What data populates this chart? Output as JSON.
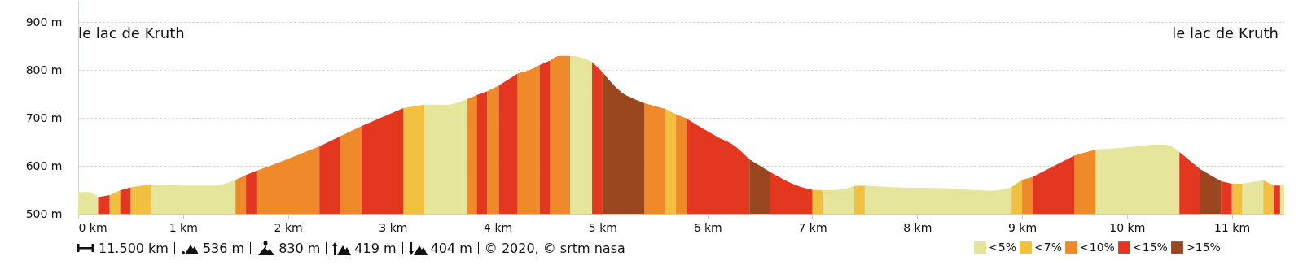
{
  "chart_data": {
    "type": "area",
    "xlim": [
      0,
      11.5
    ],
    "ylim": [
      500,
      945
    ],
    "xticks": [
      {
        "value": 0,
        "label": "0 km"
      },
      {
        "value": 1,
        "label": "1 km"
      },
      {
        "value": 2,
        "label": "2 km"
      },
      {
        "value": 3,
        "label": "3 km"
      },
      {
        "value": 4,
        "label": "4 km"
      },
      {
        "value": 5,
        "label": "5 km"
      },
      {
        "value": 6,
        "label": "6 km"
      },
      {
        "value": 7,
        "label": "7 km"
      },
      {
        "value": 8,
        "label": "8 km"
      },
      {
        "value": 9,
        "label": "9 km"
      },
      {
        "value": 10,
        "label": "10 km"
      },
      {
        "value": 11,
        "label": "11 km"
      }
    ],
    "yticks": [
      {
        "value": 500,
        "label": "500 m"
      },
      {
        "value": 600,
        "label": "600 m"
      },
      {
        "value": 700,
        "label": "700 m"
      },
      {
        "value": 800,
        "label": "800 m"
      },
      {
        "value": 900,
        "label": "900 m"
      }
    ],
    "grid": "y",
    "legend": "bottom right",
    "annotations": [
      "le lac de Kruth",
      "le lac de Kruth",
      "11.500 km",
      "536 m",
      "830 m",
      "419 m",
      "404 m",
      "© 2020, © srtm nasa"
    ],
    "series": [
      {
        "name": "<5%",
        "color": "#e5e59b",
        "x": [
          0,
          0.09,
          0.19,
          0.45,
          0.7,
          1.0,
          1.29,
          1.5,
          2.4,
          3.3,
          3.51,
          3.71,
          4.2,
          4.69,
          4.79,
          4.9,
          6.0,
          7.1,
          7.25,
          7.4,
          7.45,
          7.5,
          7.79,
          8.31,
          8.7,
          8.9,
          9.3,
          9.7,
          10.0,
          10.3,
          10.38,
          10.5,
          10.8,
          11.1,
          11.3,
          11.38,
          11.46,
          11.5
        ],
        "values": [
          545,
          546,
          535,
          null,
          562,
          559,
          559,
          571,
          null,
          728,
          728,
          740,
          null,
          830,
          827,
          817,
          null,
          549,
          550,
          558,
          null,
          559,
          555,
          553,
          548,
          556,
          null,
          634,
          639,
          645,
          644,
          629,
          null,
          563,
          570,
          null,
          559,
          559
        ]
      },
      {
        "name": "<7%",
        "color": "#f2c040",
        "x": [
          0.3,
          0.4,
          0.45,
          0.5,
          0.7,
          1.9,
          3.1,
          3.3,
          4.4,
          5.6,
          5.7,
          6.3,
          7.0,
          7.1,
          7.25,
          7.4,
          7.5,
          8.2,
          8.9,
          9.0,
          10.0,
          11.0,
          11.1,
          11.2,
          11.3,
          11.4
        ],
        "values": [
          539,
          549,
          null,
          555,
          562,
          null,
          721,
          728,
          null,
          719,
          708,
          null,
          550,
          549,
          null,
          558,
          559,
          null,
          556,
          571,
          null,
          563,
          563,
          null,
          570,
          559
        ]
      },
      {
        "name": "<10%",
        "color": "#ef8a2a",
        "x": [
          1.5,
          1.6,
          1.65,
          1.7,
          1.99,
          2.3,
          2.4,
          2.5,
          2.7,
          3.2,
          3.71,
          3.8,
          3.85,
          3.9,
          4.01,
          4.1,
          4.19,
          4.3,
          4.4,
          4.45,
          4.5,
          4.59,
          4.69,
          5.0,
          5.4,
          5.6,
          5.65,
          5.7,
          5.8,
          7.4,
          9.0,
          9.1,
          9.3,
          9.5,
          9.7
        ],
        "values": [
          571,
          581,
          null,
          590,
          614,
          641,
          null,
          662,
          683,
          null,
          740,
          748,
          null,
          756,
          768,
          null,
          793,
          800,
          811,
          null,
          820,
          830,
          830,
          null,
          731,
          719,
          null,
          708,
          699,
          null,
          571,
          577,
          null,
          622,
          634
        ]
      },
      {
        "name": "<15%",
        "color": "#e3381f",
        "x": [
          0.19,
          0.3,
          0.35,
          0.4,
          0.5,
          1.0,
          1.6,
          1.7,
          2.0,
          2.3,
          2.5,
          2.6,
          2.7,
          3.1,
          3.5,
          3.8,
          3.9,
          3.95,
          4.01,
          4.19,
          4.3,
          4.4,
          4.5,
          4.7,
          4.9,
          5.0,
          5.4,
          5.8,
          6.11,
          6.24,
          6.4,
          6.5,
          6.6,
          6.88,
          7.0,
          8.0,
          9.1,
          9.5,
          10.0,
          10.5,
          10.7,
          10.8,
          10.9,
          11.0,
          11.2,
          11.4,
          11.46
        ],
        "values": [
          535,
          539,
          null,
          549,
          555,
          null,
          581,
          590,
          null,
          641,
          662,
          null,
          683,
          721,
          null,
          748,
          756,
          null,
          768,
          793,
          null,
          811,
          820,
          null,
          817,
          796,
          null,
          699,
          659,
          645,
          614,
          null,
          587,
          557,
          550,
          null,
          577,
          622,
          null,
          629,
          593,
          null,
          568,
          563,
          null,
          559,
          559
        ]
      },
      {
        "name": ">15%",
        "color": "#9a4720",
        "x": [
          5.0,
          5.2,
          5.31,
          5.4,
          5.9,
          6.4,
          6.6,
          8.6,
          10.7,
          10.9
        ],
        "values": [
          796,
          751,
          739,
          731,
          null,
          614,
          587,
          null,
          593,
          568
        ]
      }
    ]
  }
}
